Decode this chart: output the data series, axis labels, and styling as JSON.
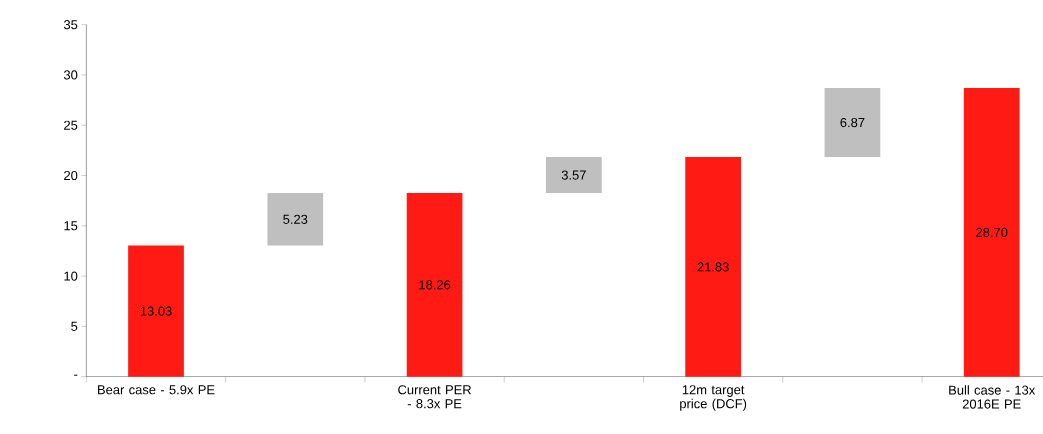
{
  "chart_data": {
    "type": "bar",
    "categories": [
      "Bear case - 5.9x PE",
      null,
      "Current PER - 8.3x PE",
      null,
      "12m target price (DCF)",
      null,
      "Bull case - 13x 2016E PE"
    ],
    "values": [
      13.03,
      5.23,
      18.26,
      3.57,
      21.83,
      6.87,
      28.7
    ],
    "base": [
      0,
      13.03,
      0,
      18.26,
      0,
      21.83,
      0
    ],
    "colors": [
      "#ff1a14",
      "#bfbfbf",
      "#ff1a14",
      "#bfbfbf",
      "#ff1a14",
      "#bfbfbf",
      "#ff1a14"
    ],
    "value_labels": [
      "13.03",
      "5.23",
      "18.26",
      "3.57",
      "21.83",
      "6.87",
      "28.70"
    ],
    "ylim": [
      0,
      35
    ],
    "yticks": [
      {
        "value": 0,
        "label": "-"
      },
      5,
      10,
      15,
      20,
      25,
      30,
      35
    ]
  }
}
